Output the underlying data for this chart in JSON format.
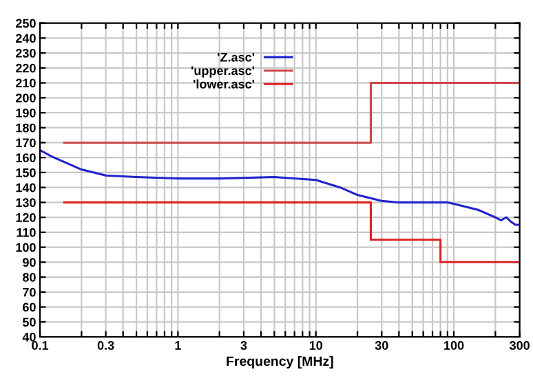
{
  "chart_data": {
    "type": "line",
    "xlabel": "Frequency [MHz]",
    "log": "x",
    "grid": true,
    "legend": "top",
    "line_style": "solid",
    "marker": "none",
    "xlim": [
      0.1,
      300
    ],
    "ylim": [
      40,
      250
    ],
    "xticks": [
      {
        "value": 0.1,
        "label": "0.1"
      },
      {
        "value": 0.2,
        "label": null
      },
      0.3,
      {
        "value": 0.4,
        "label": null
      },
      {
        "value": 0.5,
        "label": null
      },
      {
        "value": 0.6,
        "label": null
      },
      {
        "value": 0.7,
        "label": null
      },
      {
        "value": 0.8,
        "label": null
      },
      {
        "value": 0.9,
        "label": null
      },
      1,
      {
        "value": 2,
        "label": null
      },
      3,
      {
        "value": 4,
        "label": null
      },
      {
        "value": 5,
        "label": null
      },
      {
        "value": 6,
        "label": null
      },
      {
        "value": 7,
        "label": null
      },
      {
        "value": 8,
        "label": null
      },
      {
        "value": 9,
        "label": null
      },
      10,
      {
        "value": 20,
        "label": null
      },
      30,
      {
        "value": 40,
        "label": null
      },
      {
        "value": 50,
        "label": null
      },
      {
        "value": 60,
        "label": null
      },
      {
        "value": 70,
        "label": null
      },
      {
        "value": 80,
        "label": null
      },
      {
        "value": 90,
        "label": null
      },
      100,
      {
        "value": 200,
        "label": null
      },
      300
    ],
    "yticks": [
      40,
      50,
      60,
      70,
      80,
      90,
      100,
      110,
      120,
      130,
      140,
      150,
      160,
      170,
      180,
      190,
      200,
      210,
      220,
      230,
      240,
      250
    ],
    "series": [
      {
        "name": "'Z.asc'",
        "color": "#2222cc",
        "x": [
          0.1,
          0.12,
          0.15,
          0.2,
          0.3,
          0.5,
          1,
          2,
          5,
          10,
          15,
          20,
          30,
          40,
          60,
          90,
          100,
          150,
          200,
          220,
          240,
          260,
          280,
          300
        ],
        "values": [
          165,
          161,
          157,
          152,
          148,
          147,
          146,
          146,
          147,
          145,
          140,
          135,
          131,
          130,
          130,
          130,
          129,
          125,
          120,
          118,
          120,
          117,
          115,
          115
        ]
      },
      {
        "name": "'upper.asc'",
        "color": "#cc4444",
        "x": [
          0.15,
          25,
          25,
          300
        ],
        "values": [
          170,
          170,
          210,
          210
        ]
      },
      {
        "name": "'lower.asc'",
        "color": "#dd2222",
        "x": [
          0.15,
          25,
          25,
          80,
          80,
          300
        ],
        "values": [
          130,
          130,
          105,
          105,
          90,
          90
        ]
      }
    ]
  }
}
